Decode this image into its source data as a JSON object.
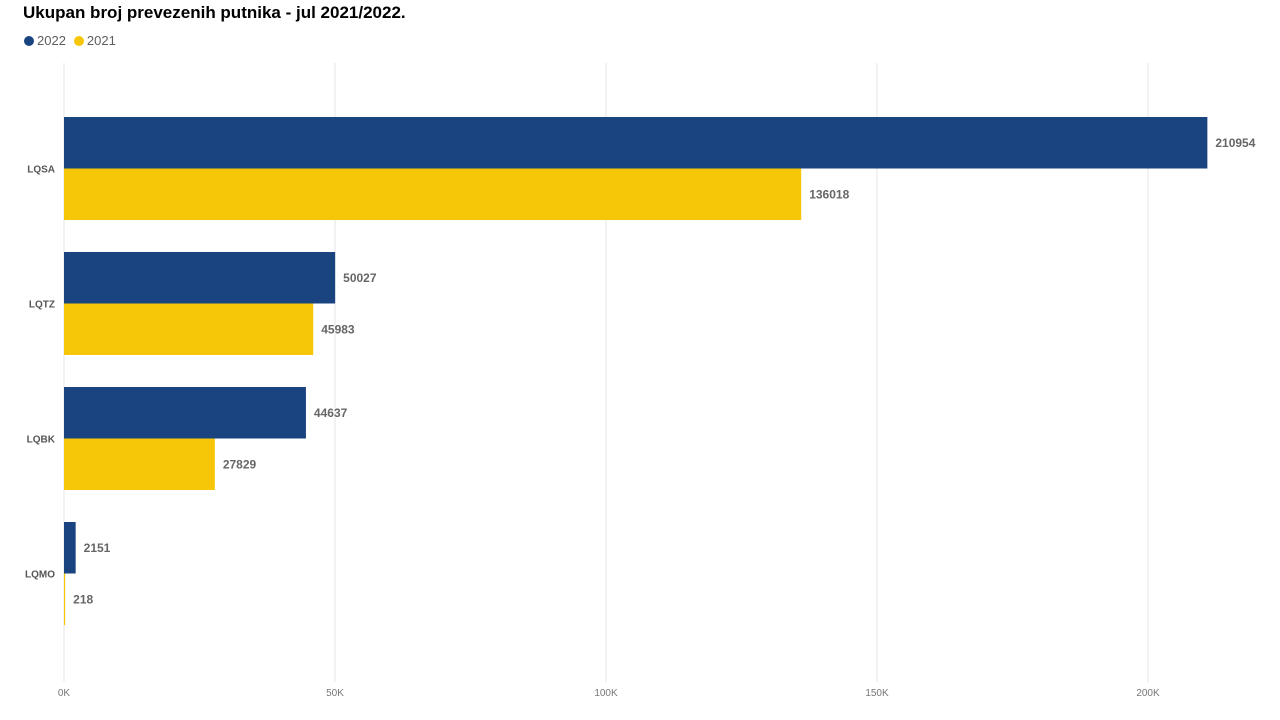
{
  "chart_data": {
    "type": "bar",
    "orientation": "horizontal",
    "title": "Ukupan broj prevezenih putnika - jul 2021/2022.",
    "categories": [
      "LQSA",
      "LQTZ",
      "LQBK",
      "LQMO"
    ],
    "series": [
      {
        "name": "2022",
        "color": "#1a4480",
        "values": [
          210954,
          50027,
          44637,
          2151
        ]
      },
      {
        "name": "2021",
        "color": "#f6c708",
        "values": [
          136018,
          45983,
          27829,
          218
        ]
      }
    ],
    "xlim": [
      0,
      200000
    ],
    "x_ticks": [
      0,
      50000,
      100000,
      150000,
      200000
    ],
    "x_tick_labels": [
      "0K",
      "50K",
      "100K",
      "150K",
      "200K"
    ],
    "grid": true,
    "legend_position": "top-left",
    "data_labels": true
  }
}
